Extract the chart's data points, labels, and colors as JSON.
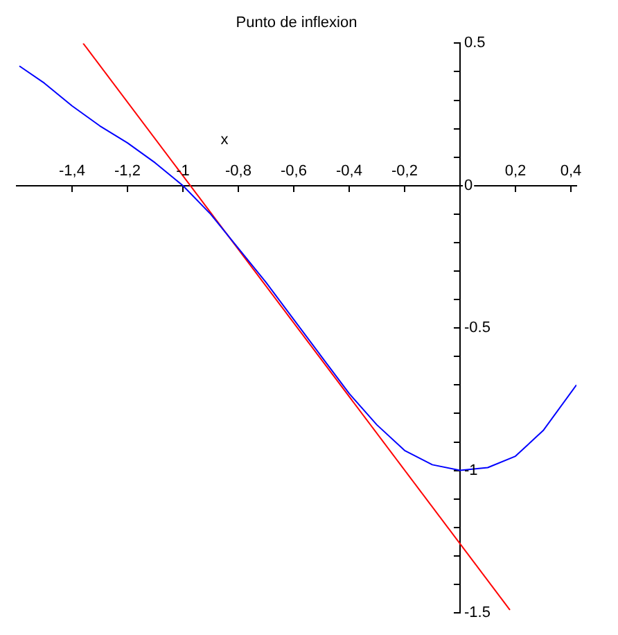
{
  "chart_data": {
    "type": "line",
    "title": "Punto de inflexion",
    "xlabel": "x",
    "xlim": [
      -1.6,
      0.42
    ],
    "ylim": [
      -1.5,
      0.5
    ],
    "xticks": [
      {
        "value": -1.4,
        "label": "-1,4"
      },
      {
        "value": -1.2,
        "label": "-1,2"
      },
      {
        "value": -1,
        "label": "-1"
      },
      {
        "value": -0.8,
        "label": "-0,8"
      },
      {
        "value": -0.6,
        "label": "-0,6"
      },
      {
        "value": -0.4,
        "label": "-0,4"
      },
      {
        "value": -0.2,
        "label": "-0,2"
      },
      {
        "value": 0.2,
        "label": "0,2"
      },
      {
        "value": 0.4,
        "label": "0,4"
      }
    ],
    "yticks": [
      -1.5,
      {
        "value": -1.4,
        "label": null
      },
      {
        "value": -1.3,
        "label": null
      },
      {
        "value": -1.2,
        "label": null
      },
      {
        "value": -1.1,
        "label": null
      },
      -1,
      {
        "value": -0.9,
        "label": null
      },
      {
        "value": -0.8,
        "label": null
      },
      {
        "value": -0.7,
        "label": null
      },
      {
        "value": -0.6,
        "label": null
      },
      -0.5,
      {
        "value": -0.4,
        "label": null
      },
      {
        "value": -0.3,
        "label": null
      },
      {
        "value": -0.2,
        "label": null
      },
      {
        "value": -0.1,
        "label": null
      },
      0,
      {
        "value": 0.1,
        "label": null
      },
      {
        "value": 0.2,
        "label": null
      },
      {
        "value": 0.3,
        "label": null
      },
      {
        "value": 0.4,
        "label": null
      },
      0.5
    ],
    "grid": false,
    "legend": false,
    "marker": "none",
    "line_style": "solid",
    "series": [
      {
        "color": "#0000ff",
        "x": [
          -1.59,
          -1.5,
          -1.4,
          -1.3,
          -1.2,
          -1.1,
          -1.0,
          -0.9,
          -0.8,
          -0.7,
          -0.6,
          -0.5,
          -0.4,
          -0.3,
          -0.2,
          -0.1,
          0,
          0.1,
          0.2,
          0.3,
          0.42
        ],
        "values": [
          0.42,
          0.36,
          0.28,
          0.21,
          0.15,
          0.08,
          0,
          -0.1,
          -0.22,
          -0.34,
          -0.47,
          -0.6,
          -0.73,
          -0.84,
          -0.93,
          -0.98,
          -1,
          -0.99,
          -0.95,
          -0.86,
          -0.7
        ]
      },
      {
        "color": "#ff0000",
        "x": [
          -1.36,
          0.18
        ],
        "values": [
          0.5,
          -1.49
        ]
      }
    ]
  }
}
